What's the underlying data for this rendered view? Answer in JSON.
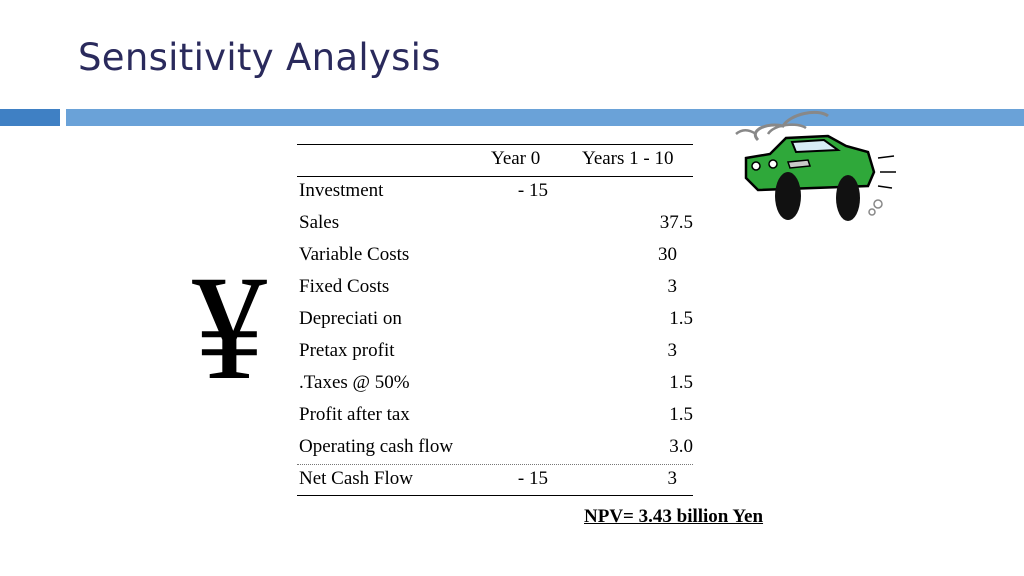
{
  "slide": {
    "title": "Sensitivity Analysis",
    "accent_colors": {
      "bar_dark": "#3f80c4",
      "bar_light": "#6aa2d8",
      "title": "#2a2a5c",
      "car_body": "#2fa83a"
    }
  },
  "icons": {
    "currency": "yen-symbol",
    "clipart": "car-clipart"
  },
  "yen_glyph": "¥",
  "table": {
    "columns": [
      "Year 0",
      "Years 1 - 10"
    ],
    "rows": [
      {
        "label": "Investment",
        "year0": "- 15",
        "years1_10": ""
      },
      {
        "label": "Sales",
        "year0": "",
        "years1_10": "37.5"
      },
      {
        "label": "Variable Costs",
        "year0": "",
        "years1_10": "30"
      },
      {
        "label": "Fixed Costs",
        "year0": "",
        "years1_10": "3"
      },
      {
        "label": "Depreciati on",
        "year0": "",
        "years1_10": "1.5"
      },
      {
        "label": "Pretax profit",
        "year0": "",
        "years1_10": "3"
      },
      {
        "label": ".Taxes @ 50%",
        "year0": "",
        "years1_10": "1.5"
      },
      {
        "label": "Profit after tax",
        "year0": "",
        "years1_10": "1.5"
      },
      {
        "label": "Operating cash flow",
        "year0": "",
        "years1_10": "3.0"
      },
      {
        "label": "Net Cash Flow",
        "year0": "- 15",
        "years1_10": "3"
      }
    ]
  },
  "npv": "NPV=  3.43 billion Yen"
}
